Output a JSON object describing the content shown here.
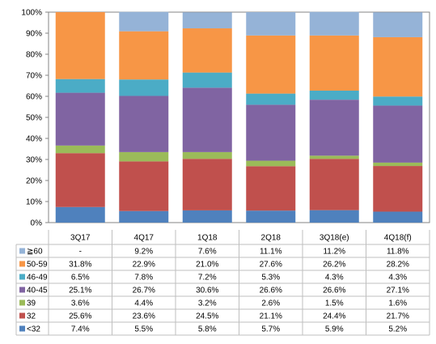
{
  "chart_data": {
    "type": "bar",
    "stacked": true,
    "normalized": true,
    "categories": [
      "3Q17",
      "4Q17",
      "1Q18",
      "2Q18",
      "3Q18(e)",
      "4Q18(f)"
    ],
    "y_ticks": [
      "0%",
      "10%",
      "20%",
      "30%",
      "40%",
      "50%",
      "60%",
      "70%",
      "80%",
      "90%",
      "100%"
    ],
    "ylim": [
      0,
      100
    ],
    "grid": false,
    "legend": "data-table-rows",
    "series": [
      {
        "name": "<32",
        "color": "#4f81bd",
        "values": [
          7.4,
          5.5,
          5.8,
          5.7,
          5.9,
          5.2
        ],
        "labels": [
          "7.4%",
          "5.5%",
          "5.8%",
          "5.7%",
          "5.9%",
          "5.2%"
        ]
      },
      {
        "name": "32",
        "color": "#c0504d",
        "values": [
          25.6,
          23.6,
          24.5,
          21.1,
          24.4,
          21.7
        ],
        "labels": [
          "25.6%",
          "23.6%",
          "24.5%",
          "21.1%",
          "24.4%",
          "21.7%"
        ]
      },
      {
        "name": "39",
        "color": "#9bbb59",
        "values": [
          3.6,
          4.4,
          3.2,
          2.6,
          1.5,
          1.6
        ],
        "labels": [
          "3.6%",
          "4.4%",
          "3.2%",
          "2.6%",
          "1.5%",
          "1.6%"
        ]
      },
      {
        "name": "40-45",
        "color": "#8064a2",
        "values": [
          25.1,
          26.7,
          30.6,
          26.6,
          26.6,
          27.1
        ],
        "labels": [
          "25.1%",
          "26.7%",
          "30.6%",
          "26.6%",
          "26.6%",
          "27.1%"
        ]
      },
      {
        "name": "46-49",
        "color": "#4bacc6",
        "values": [
          6.5,
          7.8,
          7.2,
          5.3,
          4.3,
          4.3
        ],
        "labels": [
          "6.5%",
          "7.8%",
          "7.2%",
          "5.3%",
          "4.3%",
          "4.3%"
        ]
      },
      {
        "name": "50-59",
        "color": "#f79646",
        "values": [
          31.8,
          22.9,
          21.0,
          27.6,
          26.2,
          28.2
        ],
        "labels": [
          "31.8%",
          "22.9%",
          "21.0%",
          "27.6%",
          "26.2%",
          "28.2%"
        ]
      },
      {
        "name": "≧60",
        "color": "#95b3d7",
        "values": [
          0,
          9.2,
          7.6,
          11.1,
          11.2,
          11.8
        ],
        "labels": [
          "-",
          "9.2%",
          "7.6%",
          "11.1%",
          "11.2%",
          "11.8%"
        ]
      }
    ]
  }
}
